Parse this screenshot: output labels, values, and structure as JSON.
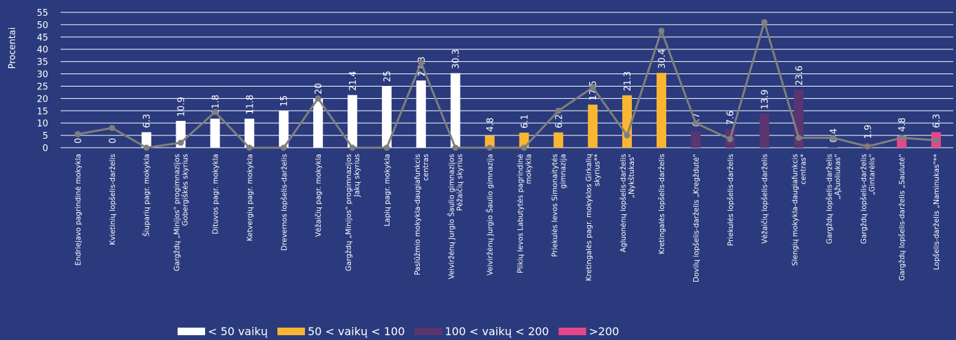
{
  "chart_data": {
    "type": "bar",
    "y_label": "Procentai",
    "ylim": [
      0,
      55
    ],
    "yticks": [
      0,
      5,
      10,
      15,
      20,
      25,
      30,
      35,
      40,
      45,
      50,
      55
    ],
    "grid": true,
    "categories": [
      [
        "Endriejavo pagrindinė mokykla"
      ],
      [
        "Kvietinių lopšelis-darželis"
      ],
      [
        "Šiuparių pagr. mokykla"
      ],
      [
        "Gargždų „Minijos\" progimnazijos",
        "Gobergiškės skyrius"
      ],
      [
        "Dituvos pagr. mokykla"
      ],
      [
        "Ketvergių pagr. mokykla"
      ],
      [
        "Drevernos lopšelis-darželis"
      ],
      [
        "Vėžaičių pagr. mokykla"
      ],
      [
        "Gargždų „Minijos\" progimnazijos",
        "Jakų skyrius"
      ],
      [
        "Lapių pagr. mokykla"
      ],
      [
        "Paslūžmio mokykla-daugiafunkcis",
        "centras"
      ],
      [
        "Veiviržėnų Jurgio Šaulio gimnazijos",
        "Pėžaičių skyrius"
      ],
      [
        "Veiviržėnų Jurgio Šaulio gimnazija"
      ],
      [
        "Plikių Ievos Labutytės pagrindinė",
        "mokykla"
      ],
      [
        "Priekulės Ievos Simonaitytės",
        "gimnazija"
      ],
      [
        "Kretingalės pagr. mokyklos Girkalių",
        "skyrius**"
      ],
      [
        "Agluonėnų lopšelis-darželis",
        "„Nykštukas\""
      ],
      [
        "Kretingalės lopšelis-darželis"
      ],
      [
        "Dovilų lopšelis-darželis „Kregždutė\""
      ],
      [
        "Priekulės lopšelis-darželis"
      ],
      [
        "Vėžaičių lopšelis-darželis"
      ],
      [
        "Slengių mokykla-daugiafunkcis",
        "centras*"
      ],
      [
        "Gargždų lopšelis-darželis",
        "„Ąžuoliukas\""
      ],
      [
        "Gargždų lopšelis-darželis",
        "„Gintarėlis\""
      ],
      [
        "Gargždų lopšelis-darželis „Saulutė\""
      ],
      [
        "Lopšelis-darželis „Naminukas\"**"
      ]
    ],
    "values": [
      0,
      0,
      6.3,
      10.9,
      11.8,
      11.8,
      15,
      20,
      21.4,
      25,
      27.3,
      30.3,
      4.8,
      6.1,
      6.2,
      17.5,
      21.3,
      30.4,
      6.7,
      7.6,
      13.9,
      23.6,
      0.4,
      1.9,
      4.8,
      6.3
    ],
    "bar_colors": [
      "#ffffff",
      "#ffffff",
      "#ffffff",
      "#ffffff",
      "#ffffff",
      "#ffffff",
      "#ffffff",
      "#ffffff",
      "#ffffff",
      "#ffffff",
      "#ffffff",
      "#ffffff",
      "#fbb631",
      "#fbb631",
      "#fbb631",
      "#fbb631",
      "#fbb631",
      "#fbb631",
      "#5b3570",
      "#5b3570",
      "#5b3570",
      "#5b3570",
      "#5b3570",
      "#5b3570",
      "#e8468a",
      "#e8468a"
    ],
    "line": {
      "color": "#7f7f7f",
      "values": [
        5.5,
        8,
        0,
        2,
        14.5,
        0,
        0,
        20,
        0,
        0,
        34.5,
        0,
        0,
        0,
        15,
        24.5,
        5,
        47.5,
        10,
        3.5,
        51,
        4,
        4,
        0.5,
        4,
        3
      ]
    },
    "legend": [
      {
        "name": "< 50 vaikų",
        "color": "#ffffff"
      },
      {
        "name": "50 < vaikų < 100",
        "color": "#fbb631"
      },
      {
        "name": "100 < vaikų < 200",
        "color": "#5b3570"
      },
      {
        "name": ">200",
        "color": "#e8468a"
      }
    ]
  }
}
